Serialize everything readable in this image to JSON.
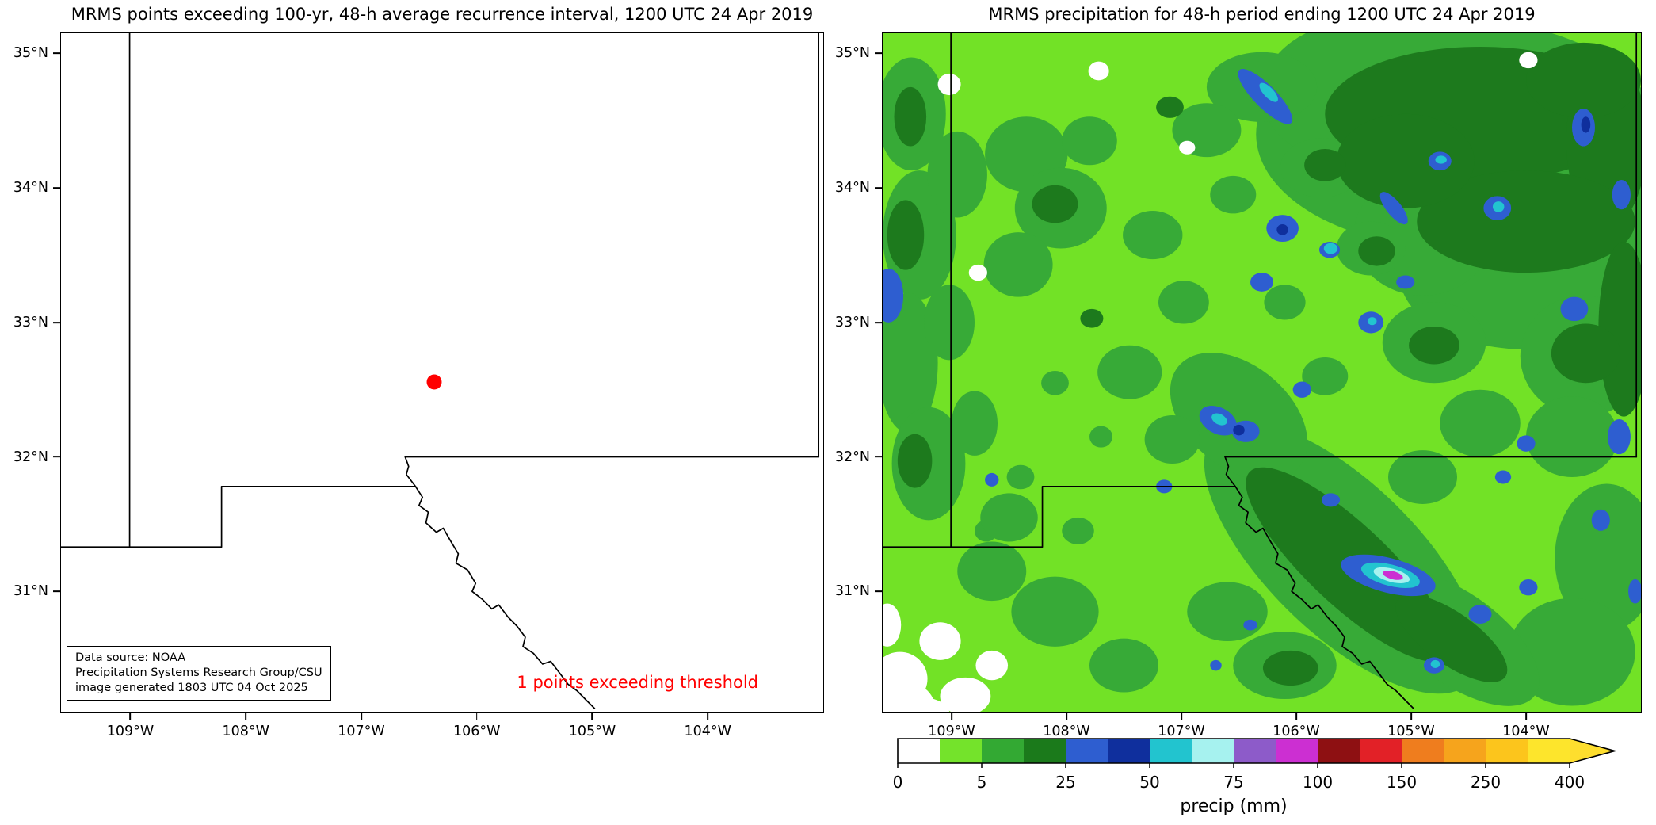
{
  "figure": {
    "background": "#ffffff"
  },
  "axis": {
    "lat_ticks": [
      {
        "label": "35°N",
        "value": 35
      },
      {
        "label": "34°N",
        "value": 34
      },
      {
        "label": "33°N",
        "value": 33
      },
      {
        "label": "32°N",
        "value": 32
      },
      {
        "label": "31°N",
        "value": 31
      }
    ],
    "lon_ticks": [
      {
        "label": "109°W",
        "value": -109
      },
      {
        "label": "108°W",
        "value": -108
      },
      {
        "label": "107°W",
        "value": -107
      },
      {
        "label": "106°W",
        "value": -106
      },
      {
        "label": "105°W",
        "value": -105
      },
      {
        "label": "104°W",
        "value": -104
      }
    ],
    "extent": {
      "lon_min": -109.6,
      "lon_max": -103.0,
      "lat_min": 30.1,
      "lat_max": 35.15
    }
  },
  "left_panel": {
    "title": "MRMS points exceeding 100-yr, 48-h average recurrence interval, 1200 UTC 24 Apr 2019",
    "point": {
      "lon": -106.37,
      "lat": 32.56,
      "color": "#ff0000"
    },
    "annotation": "1 points exceeding threshold",
    "annotation_color": "#ff0000",
    "datasource_lines": [
      "Data source: NOAA",
      "Precipitation Systems Research Group/CSU",
      "image generated 1803 UTC 04 Oct 2025"
    ]
  },
  "right_panel": {
    "title": "MRMS precipitation for 48-h period ending 1200 UTC 24 Apr 2019"
  },
  "colorbar": {
    "label": "precip (mm)",
    "ticks": [
      "0",
      "5",
      "25",
      "50",
      "75",
      "100",
      "150",
      "250",
      "400"
    ],
    "segment_colors": [
      "#ffffff",
      "#74e32b",
      "#33a933",
      "#1b7a1b",
      "#2e5ed0",
      "#0f2f9d",
      "#22c4cf",
      "#a6f2ef",
      "#8d5bc9",
      "#cc2fd2",
      "#8e1012",
      "#e22127",
      "#ef7d1e",
      "#f6a41c",
      "#fcc51c",
      "#fde52c"
    ],
    "arrow_color": "#fede2e",
    "outline_color": "#000000"
  },
  "map_colors": {
    "no_precip": "#ffffff",
    "light_green": "#72e226",
    "mid_green": "#37aa37",
    "dark_green": "#1d7a1d",
    "blue": "#2e5ed0",
    "dark_blue": "#0f2f9d",
    "cyan": "#22c4cf",
    "pale_cyan": "#a6f2ef",
    "purple": "#8d5bc9",
    "magenta": "#cc2fd2",
    "border": "#000000"
  }
}
